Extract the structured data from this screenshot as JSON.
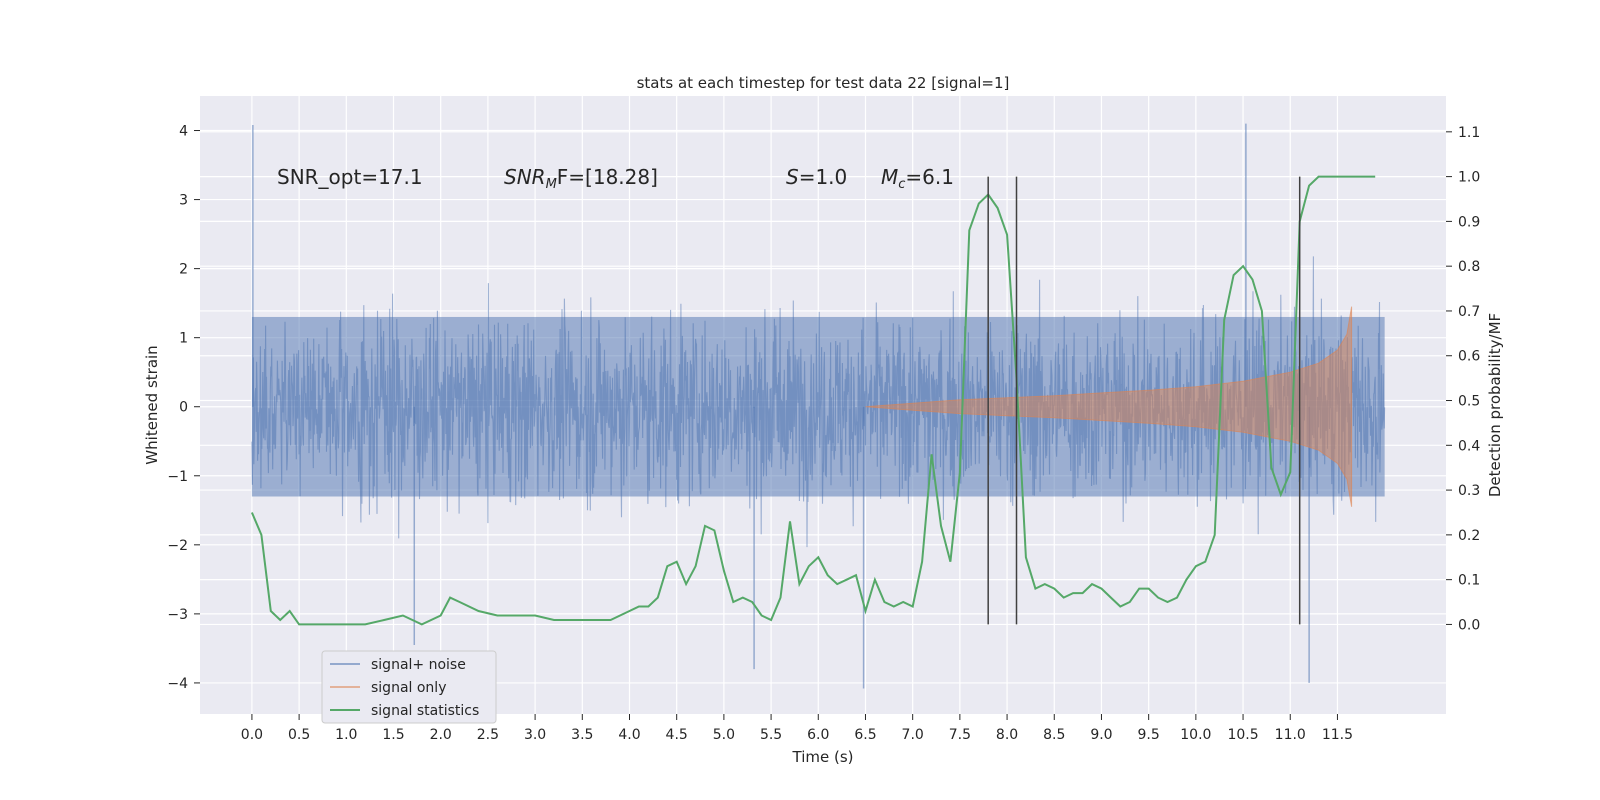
{
  "chart_data": {
    "type": "line",
    "title": "stats at each timestep for test data 22 [signal=1]",
    "xlabel": "Time (s)",
    "ylabel": "Whitened strain",
    "y2label": "Detection probability/MF",
    "xlim": [
      -0.55,
      12.65
    ],
    "ylim": [
      -4.45,
      4.5
    ],
    "y2lim": [
      -0.2,
      1.18
    ],
    "x_ticks": [
      "0.0",
      "0.5",
      "1.0",
      "1.5",
      "2.0",
      "2.5",
      "3.0",
      "3.5",
      "4.0",
      "4.5",
      "5.0",
      "5.5",
      "6.0",
      "6.5",
      "7.0",
      "7.5",
      "8.0",
      "8.5",
      "9.0",
      "9.5",
      "10.0",
      "10.5",
      "11.0",
      "11.5"
    ],
    "y_ticks": [
      "4",
      "3",
      "2",
      "1",
      "0",
      "−1",
      "−2",
      "−3",
      "−4"
    ],
    "y2_ticks": [
      "1.1",
      "1.0",
      "0.9",
      "0.8",
      "0.7",
      "0.6",
      "0.5",
      "0.4",
      "0.3",
      "0.2",
      "0.1",
      "0.0"
    ],
    "grid": true,
    "legend_placement": "lower-left",
    "annotations": {
      "snr_opt": "SNR_opt=17.1",
      "snr_mf_sym": "SNR",
      "snr_mf_sub": "M",
      "snr_mf_rest": "F=[18.28]",
      "s_sym": "S",
      "s_rest": "=1.0",
      "mc_sym": "M",
      "mc_sub": "c",
      "mc_rest": "=6.1"
    },
    "series": [
      {
        "name": "signal+ noise",
        "color": "#4c72b0",
        "description_values": "whitened noisy strain, sampled 0.0 to 12.0 s",
        "x_range": [
          0.0,
          12.0
        ],
        "typical_envelope": [
          -2.0,
          2.0
        ],
        "extremes": [
          {
            "x": 0.01,
            "y": 4.08
          },
          {
            "x": 10.53,
            "y": 4.1
          },
          {
            "x": 6.48,
            "y": -4.08
          },
          {
            "x": 11.2,
            "y": -4.0
          },
          {
            "x": 1.72,
            "y": -3.45
          },
          {
            "x": 5.32,
            "y": -3.8
          }
        ]
      },
      {
        "name": "signal only",
        "color": "#dd8452",
        "description_values": "chirp envelope amplitude",
        "x": [
          6.5,
          7.0,
          7.5,
          8.0,
          8.5,
          9.0,
          9.5,
          10.0,
          10.5,
          11.0,
          11.3,
          11.5,
          11.6,
          11.65
        ],
        "amplitude": [
          0.0,
          0.05,
          0.1,
          0.13,
          0.16,
          0.2,
          0.24,
          0.29,
          0.37,
          0.5,
          0.63,
          0.82,
          1.05,
          1.45
        ]
      },
      {
        "name": "signal statistics",
        "color": "#55a868",
        "x": [
          0.0,
          0.1,
          0.2,
          0.3,
          0.4,
          0.5,
          0.6,
          0.8,
          1.0,
          1.2,
          1.4,
          1.6,
          1.8,
          2.0,
          2.1,
          2.2,
          2.4,
          2.6,
          2.8,
          3.0,
          3.2,
          3.4,
          3.6,
          3.8,
          4.0,
          4.1,
          4.2,
          4.3,
          4.4,
          4.5,
          4.6,
          4.7,
          4.8,
          4.9,
          5.0,
          5.1,
          5.2,
          5.3,
          5.4,
          5.5,
          5.6,
          5.7,
          5.8,
          5.9,
          6.0,
          6.1,
          6.2,
          6.3,
          6.4,
          6.5,
          6.6,
          6.7,
          6.8,
          6.9,
          7.0,
          7.1,
          7.2,
          7.3,
          7.4,
          7.5,
          7.6,
          7.7,
          7.8,
          7.9,
          8.0,
          8.1,
          8.2,
          8.3,
          8.4,
          8.5,
          8.6,
          8.7,
          8.8,
          8.9,
          9.0,
          9.1,
          9.2,
          9.3,
          9.4,
          9.5,
          9.6,
          9.7,
          9.8,
          9.9,
          10.0,
          10.1,
          10.2,
          10.3,
          10.4,
          10.5,
          10.6,
          10.7,
          10.8,
          10.9,
          11.0,
          11.1,
          11.2,
          11.3,
          11.4,
          11.5,
          11.6,
          11.7,
          11.8,
          11.9
        ],
        "values": [
          0.25,
          0.2,
          0.03,
          0.01,
          0.03,
          0.0,
          0.0,
          0.0,
          0.0,
          0.0,
          0.01,
          0.02,
          0.0,
          0.02,
          0.06,
          0.05,
          0.03,
          0.02,
          0.02,
          0.02,
          0.01,
          0.01,
          0.01,
          0.01,
          0.03,
          0.04,
          0.04,
          0.06,
          0.13,
          0.14,
          0.09,
          0.13,
          0.22,
          0.21,
          0.12,
          0.05,
          0.06,
          0.05,
          0.02,
          0.01,
          0.06,
          0.23,
          0.09,
          0.13,
          0.15,
          0.11,
          0.09,
          0.1,
          0.11,
          0.03,
          0.1,
          0.05,
          0.04,
          0.05,
          0.04,
          0.14,
          0.38,
          0.22,
          0.14,
          0.34,
          0.88,
          0.94,
          0.96,
          0.93,
          0.87,
          0.55,
          0.15,
          0.08,
          0.09,
          0.08,
          0.06,
          0.07,
          0.07,
          0.09,
          0.08,
          0.06,
          0.04,
          0.05,
          0.08,
          0.08,
          0.06,
          0.05,
          0.06,
          0.1,
          0.13,
          0.14,
          0.2,
          0.68,
          0.78,
          0.8,
          0.77,
          0.7,
          0.35,
          0.29,
          0.34,
          0.9,
          0.98,
          1.0,
          1.0,
          1.0,
          1.0,
          1.0,
          1.0,
          1.0
        ]
      }
    ],
    "vertical_lines": [
      7.8,
      8.1,
      11.1
    ]
  }
}
